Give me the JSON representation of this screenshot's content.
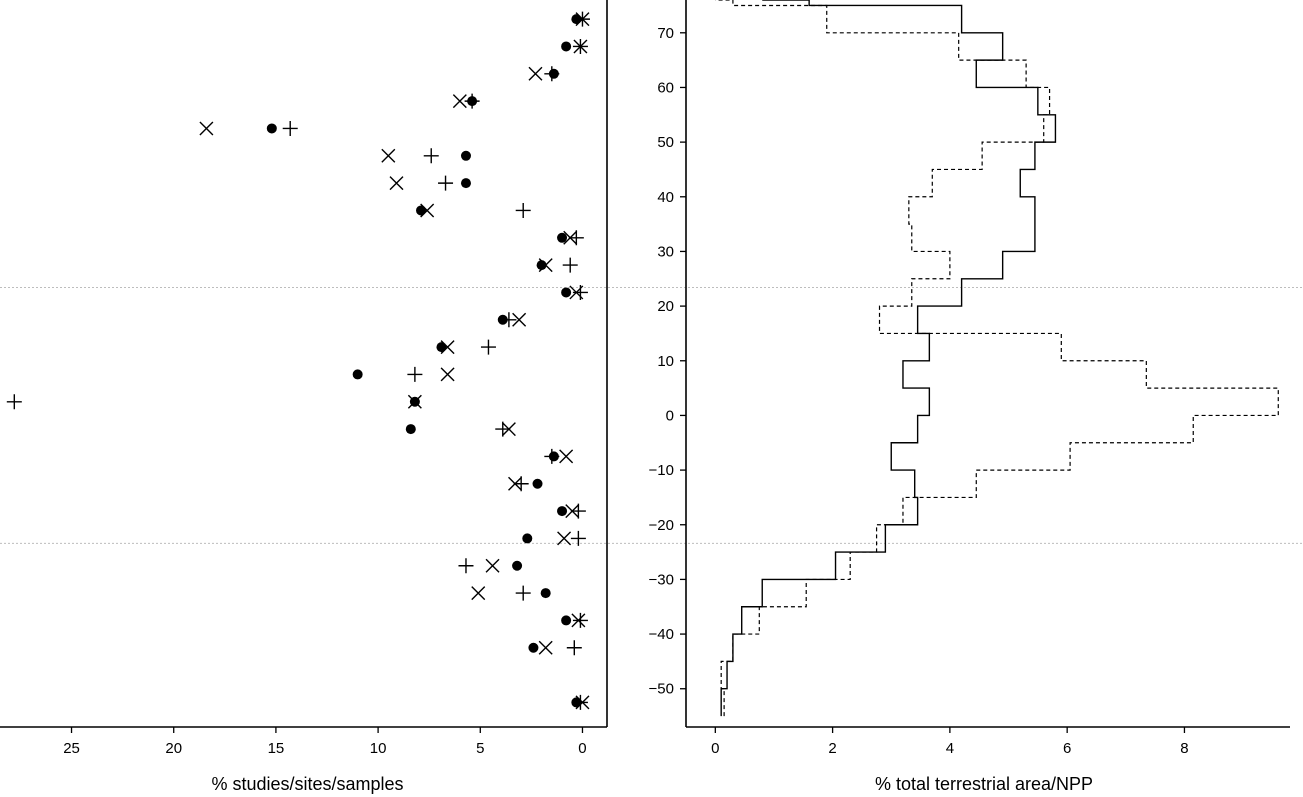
{
  "chart_data": [
    {
      "type": "scatter",
      "xlabel": "% studies/sites/samples",
      "x_reversed": true,
      "xlim": [
        28.5,
        -1.2
      ],
      "ylim": [
        -57,
        76
      ],
      "x_ticks": [
        25,
        20,
        15,
        10,
        5,
        0
      ],
      "latitudes": [
        72.5,
        67.5,
        62.5,
        57.5,
        52.5,
        47.5,
        42.5,
        37.5,
        32.5,
        27.5,
        22.5,
        17.5,
        12.5,
        7.5,
        2.5,
        -2.5,
        -7.5,
        -12.5,
        -17.5,
        -22.5,
        -27.5,
        -32.5,
        -37.5,
        -42.5,
        -52.5
      ],
      "reference_latitudes": [
        23.4,
        -23.4
      ],
      "series": [
        {
          "marker": "dot",
          "values": [
            0.3,
            0.8,
            1.4,
            5.4,
            15.2,
            5.7,
            5.7,
            7.9,
            1.0,
            2.0,
            0.8,
            3.9,
            6.9,
            11.0,
            8.2,
            8.4,
            1.4,
            2.2,
            1.0,
            2.7,
            3.2,
            1.8,
            0.8,
            2.4,
            0.3
          ]
        },
        {
          "marker": "x",
          "values": [
            0.0,
            0.1,
            2.3,
            6.0,
            18.4,
            9.5,
            9.1,
            7.6,
            0.6,
            1.8,
            0.3,
            3.1,
            6.6,
            6.6,
            8.2,
            3.6,
            0.8,
            3.3,
            0.5,
            0.9,
            4.4,
            5.1,
            0.2,
            1.8,
            0.0
          ]
        },
        {
          "marker": "plus",
          "values": [
            0.0,
            0.1,
            1.5,
            5.4,
            14.3,
            7.4,
            6.7,
            2.9,
            0.3,
            0.6,
            0.1,
            3.6,
            4.6,
            8.2,
            27.8,
            3.9,
            1.5,
            3.0,
            0.2,
            0.2,
            5.7,
            2.9,
            0.1,
            0.4,
            0.1
          ]
        }
      ]
    },
    {
      "type": "line",
      "xlabel": "% total terrestrial area/NPP",
      "xlim": [
        -0.5,
        9.8
      ],
      "ylim": [
        -57,
        76
      ],
      "x_ticks": [
        0,
        2,
        4,
        6,
        8
      ],
      "y_ticks": [
        70,
        60,
        50,
        40,
        30,
        20,
        10,
        0,
        -10,
        -20,
        -30,
        -40,
        -50
      ],
      "bin_edges": [
        -55,
        -50,
        -45,
        -40,
        -35,
        -30,
        -25,
        -20,
        -15,
        -10,
        -5,
        0,
        5,
        10,
        15,
        20,
        25,
        30,
        35,
        40,
        45,
        50,
        55,
        60,
        65,
        70,
        75,
        76
      ],
      "series": [
        {
          "style": "solid",
          "values": [
            0.1,
            0.2,
            0.3,
            0.45,
            0.8,
            2.05,
            2.9,
            3.45,
            3.4,
            3.0,
            3.45,
            3.65,
            3.2,
            3.65,
            3.45,
            4.2,
            4.9,
            5.45,
            5.45,
            5.2,
            5.45,
            5.8,
            5.5,
            4.45,
            4.9,
            4.2,
            1.6,
            0.8
          ]
        },
        {
          "style": "dashed",
          "values": [
            0.15,
            0.1,
            0.3,
            0.75,
            1.55,
            2.3,
            2.75,
            3.2,
            4.45,
            6.05,
            8.15,
            9.6,
            7.35,
            5.9,
            2.8,
            3.35,
            4.0,
            3.35,
            3.3,
            3.7,
            4.55,
            5.6,
            5.7,
            5.3,
            4.15,
            1.9,
            0.3,
            0.0
          ]
        }
      ]
    }
  ]
}
